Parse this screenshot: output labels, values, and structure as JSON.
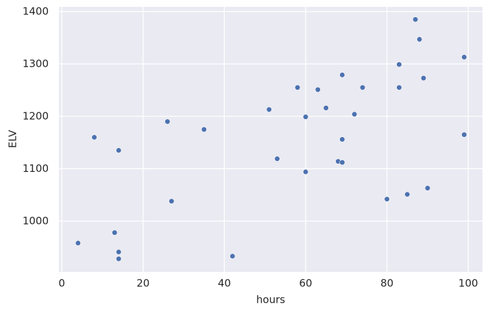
{
  "chart_data": {
    "type": "scatter",
    "x_label": "hours",
    "y_label": "ELV",
    "series": [
      {
        "name": "ELV",
        "color": "#4c72b0",
        "x": [
          87,
          88,
          99,
          83,
          69,
          89,
          58,
          63,
          74,
          83,
          51,
          65,
          72,
          60,
          26,
          35,
          8,
          99,
          69,
          14,
          53,
          68,
          69,
          60,
          90,
          85,
          80,
          27,
          13,
          4,
          14,
          42,
          14
        ],
        "values": [
          1385,
          1347,
          1313,
          1299,
          1279,
          1273,
          1255,
          1251,
          1255,
          1255,
          1213,
          1216,
          1204,
          1199,
          1190,
          1175,
          1160,
          1165,
          1156,
          1135,
          1119,
          1114,
          1112,
          1094,
          1063,
          1051,
          1042,
          1038,
          978,
          958,
          941,
          933,
          928
        ]
      }
    ],
    "xlim": [
      -0.7,
      103.5
    ],
    "ylim": [
      903,
      1409
    ],
    "xticks": [
      0,
      20,
      40,
      60,
      80,
      100
    ],
    "yticks": [
      1000,
      1100,
      1200,
      1300,
      1400
    ],
    "grid": true
  }
}
